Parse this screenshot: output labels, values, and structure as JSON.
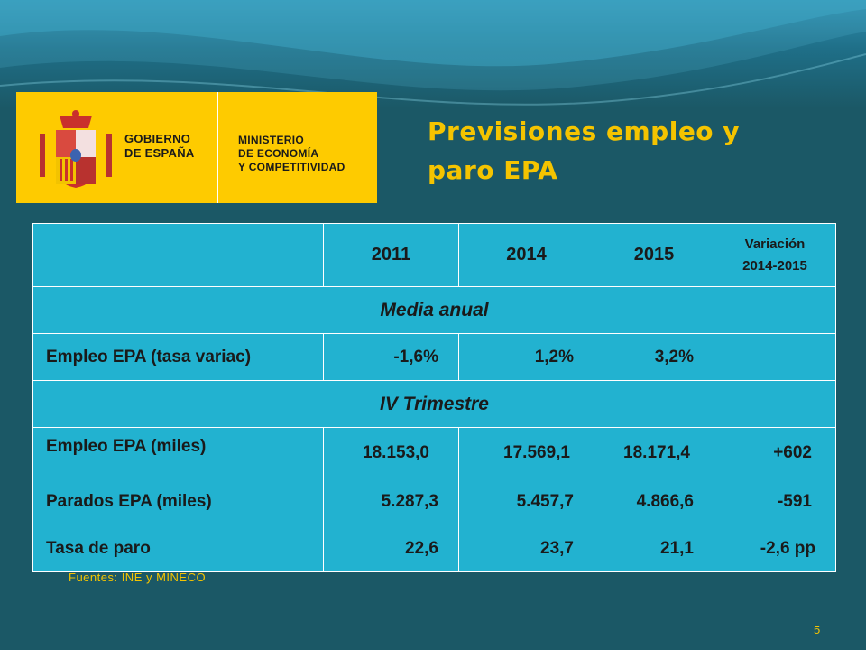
{
  "logo": {
    "government": [
      "GOBIERNO",
      "DE ESPAÑA"
    ],
    "ministry": [
      "MINISTERIO",
      "DE ECONOMÍA",
      "Y COMPETITIVIDAD"
    ],
    "brand_color": "#fecb00"
  },
  "title": [
    "Previsiones empleo y",
    "paro EPA"
  ],
  "table": {
    "headers": [
      "",
      "2011",
      "2014",
      "2015",
      "Variación 2014-2015"
    ],
    "variation_header": [
      "Variación",
      "2014-2015"
    ],
    "sections": [
      {
        "name": "Media anual",
        "rows": [
          {
            "label": "Empleo EPA (tasa variac)",
            "values": [
              "-1,6%",
              "1,2%",
              "3,2%",
              ""
            ]
          }
        ]
      },
      {
        "name": "IV Trimestre",
        "rows": [
          {
            "label": "Empleo EPA (miles)",
            "values": [
              "18.153,0",
              "17.569,1",
              "18.171,4",
              "+602"
            ]
          },
          {
            "label": "Parados EPA (miles)",
            "values": [
              "5.287,3",
              "5.457,7",
              "4.866,6",
              "-591"
            ]
          },
          {
            "label": "Tasa de paro",
            "values": [
              "22,6",
              "23,7",
              "21,1",
              "-2,6 pp"
            ]
          }
        ]
      }
    ]
  },
  "source": "Fuentes: INE y MINECO",
  "page_number": "5",
  "colors": {
    "background": "#1b5866",
    "table_cell": "#22b2d0",
    "title": "#f5c400"
  }
}
